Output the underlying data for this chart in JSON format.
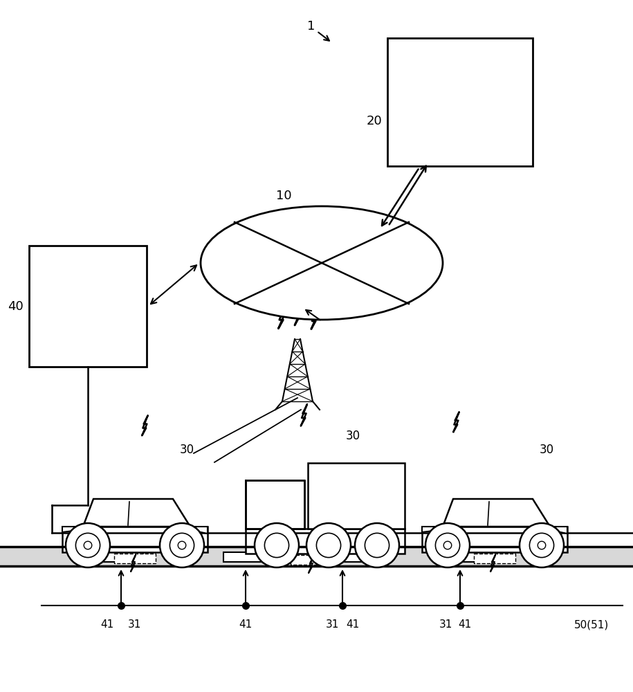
{
  "bg_color": "#ffffff",
  "line_color": "#000000",
  "figsize": [
    9.15,
    10.0
  ],
  "dpi": 100,
  "labels": {
    "l1": "1",
    "l10": "10",
    "l20": "20",
    "l30": "30",
    "l40": "40",
    "l41": "41",
    "l31": "31",
    "l50": "50(51)"
  }
}
